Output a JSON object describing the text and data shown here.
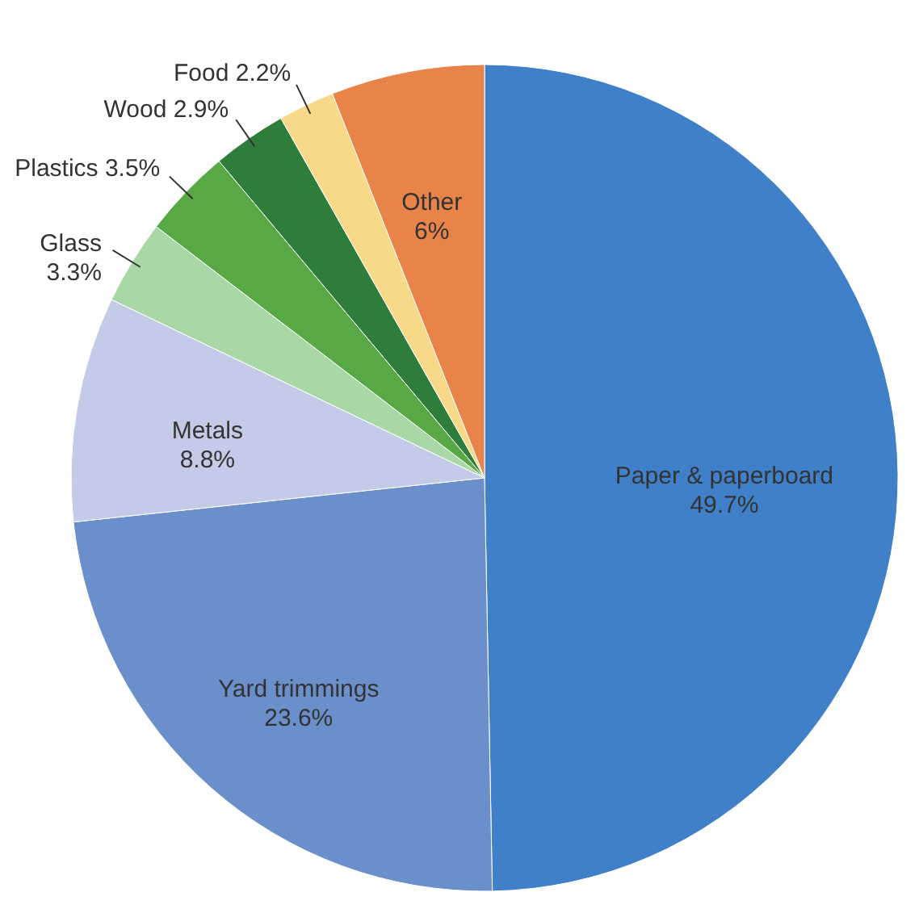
{
  "chart_data": {
    "type": "pie",
    "categories": [
      "Paper & paperboard",
      "Yard trimmings",
      "Metals",
      "Glass",
      "Plastics",
      "Wood",
      "Food",
      "Other"
    ],
    "values": [
      49.7,
      23.6,
      8.8,
      3.3,
      3.5,
      2.9,
      2.2,
      6
    ],
    "value_labels": [
      "49.7%",
      "23.6%",
      "8.8%",
      "3.3%",
      "3.5%",
      "2.9%",
      "2.2%",
      "6%"
    ],
    "colors": [
      "#3f80c8",
      "#6a8fcb",
      "#c3cbe8",
      "#a9d8a6",
      "#58a945",
      "#2f7d3a",
      "#f8d98a",
      "#e8844a"
    ]
  }
}
